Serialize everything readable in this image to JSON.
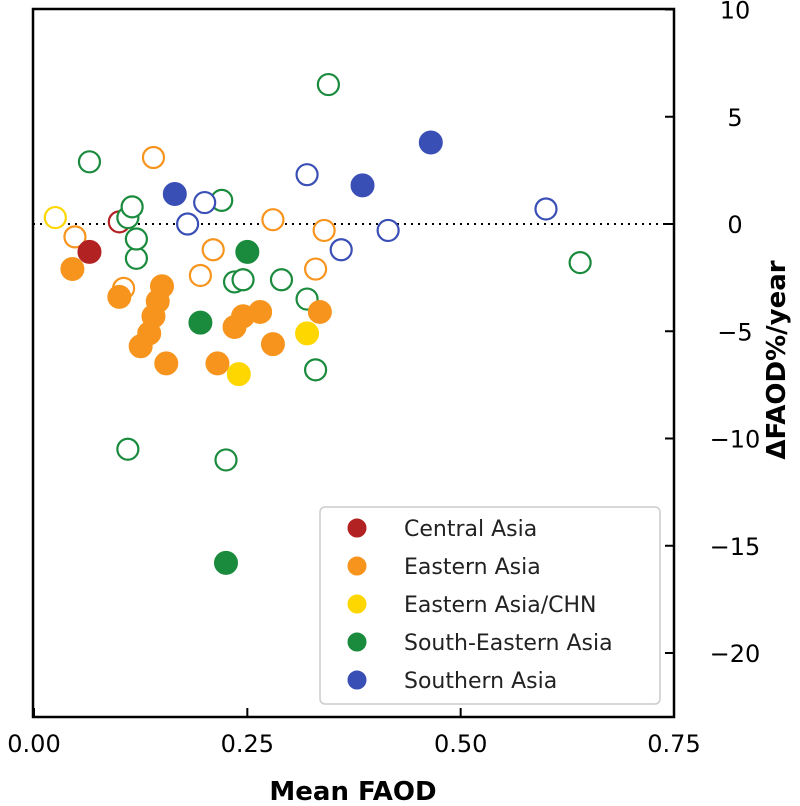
{
  "chart_data": {
    "type": "scatter",
    "xlabel": "Mean FAOD",
    "ylabel": "ΔFAOD%/year",
    "xlim": [
      0,
      0.75
    ],
    "ylim": [
      -23,
      10
    ],
    "x_ticks": [
      "0.00",
      "0.25",
      "0.50",
      "0.75"
    ],
    "x_tick_values": [
      0,
      0.25,
      0.5,
      0.75
    ],
    "y_ticks": [
      "10",
      "5",
      "0",
      "−5",
      "−10",
      "−15",
      "−20"
    ],
    "y_tick_values": [
      10,
      5,
      0,
      -5,
      -10,
      -15,
      -20
    ],
    "y_axis_side": "right",
    "zero_reference_line": "dotted",
    "legend_position": "lower-right",
    "series": [
      {
        "name": "Central Asia",
        "color": "#b22222",
        "filled": [
          [
            0.065,
            -1.3
          ]
        ],
        "open": [
          [
            0.1,
            0.1
          ]
        ]
      },
      {
        "name": "Eastern Asia",
        "color": "#f7941d",
        "filled": [
          [
            0.045,
            -2.1
          ],
          [
            0.1,
            -3.4
          ],
          [
            0.125,
            -5.7
          ],
          [
            0.135,
            -5.1
          ],
          [
            0.14,
            -4.3
          ],
          [
            0.145,
            -3.6
          ],
          [
            0.15,
            -2.9
          ],
          [
            0.155,
            -6.5
          ],
          [
            0.215,
            -6.5
          ],
          [
            0.235,
            -4.8
          ],
          [
            0.245,
            -4.3
          ],
          [
            0.265,
            -4.1
          ],
          [
            0.28,
            -5.6
          ],
          [
            0.335,
            -4.1
          ]
        ],
        "open": [
          [
            0.048,
            -0.6
          ],
          [
            0.105,
            -3.0
          ],
          [
            0.14,
            3.1
          ],
          [
            0.195,
            -2.4
          ],
          [
            0.21,
            -1.2
          ],
          [
            0.28,
            0.2
          ],
          [
            0.33,
            -2.1
          ],
          [
            0.34,
            -0.3
          ]
        ]
      },
      {
        "name": "Eastern Asia/CHN",
        "color": "#ffd700",
        "filled": [
          [
            0.24,
            -7.0
          ],
          [
            0.32,
            -5.1
          ]
        ],
        "open": [
          [
            0.025,
            0.3
          ]
        ]
      },
      {
        "name": "South-Eastern Asia",
        "color": "#1a8a3c",
        "filled": [
          [
            0.195,
            -4.6
          ],
          [
            0.25,
            -1.3
          ],
          [
            0.225,
            -15.8
          ]
        ],
        "open": [
          [
            0.065,
            2.9
          ],
          [
            0.11,
            0.3
          ],
          [
            0.115,
            0.8
          ],
          [
            0.12,
            -1.6
          ],
          [
            0.12,
            -0.7
          ],
          [
            0.11,
            -10.5
          ],
          [
            0.22,
            1.1
          ],
          [
            0.235,
            -2.7
          ],
          [
            0.245,
            -2.6
          ],
          [
            0.29,
            -2.6
          ],
          [
            0.32,
            -3.5
          ],
          [
            0.33,
            -6.8
          ],
          [
            0.345,
            6.5
          ],
          [
            0.64,
            -1.8
          ],
          [
            0.225,
            -11.0
          ]
        ]
      },
      {
        "name": "Southern Asia",
        "color": "#3a4fb5",
        "filled": [
          [
            0.165,
            1.4
          ],
          [
            0.385,
            1.8
          ],
          [
            0.465,
            3.8
          ]
        ],
        "open": [
          [
            0.18,
            0.0
          ],
          [
            0.2,
            1.0
          ],
          [
            0.32,
            2.3
          ],
          [
            0.36,
            -1.2
          ],
          [
            0.415,
            -0.3
          ],
          [
            0.6,
            0.7
          ]
        ]
      }
    ]
  }
}
